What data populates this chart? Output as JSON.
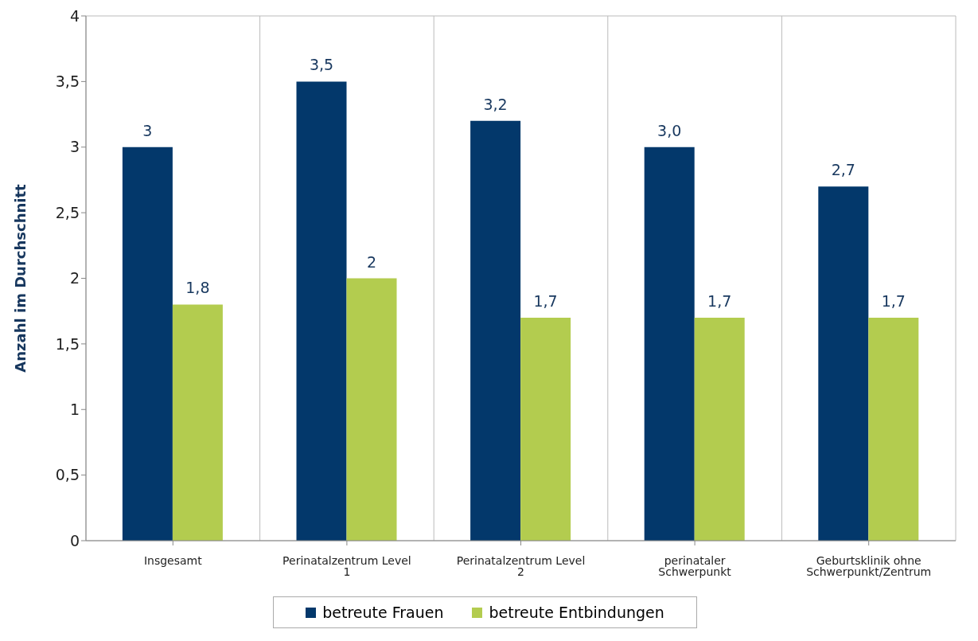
{
  "chart_data": {
    "type": "bar",
    "ylabel": "Anzahl im Durchschnitt",
    "categories": [
      "Insgesamt",
      "Perinatalzentrum Level 1",
      "Perinatalzentrum Level 2",
      "perinataler Schwerpunkt",
      "Geburtsklinik ohne Schwerpunkt/Zentrum"
    ],
    "series": [
      {
        "name": "betreute Frauen",
        "color": "#03386b",
        "values": [
          3,
          3.5,
          3.2,
          3.0,
          2.7
        ],
        "value_labels": [
          "3",
          "3,5",
          "3,2",
          "3,0",
          "2,7"
        ]
      },
      {
        "name": "betreute Entbindungen",
        "color": "#b3cc4f",
        "values": [
          1.8,
          2,
          1.7,
          1.7,
          1.7
        ],
        "value_labels": [
          "1,8",
          "2",
          "1,7",
          "1,7",
          "1,7"
        ]
      }
    ],
    "ylim": [
      0,
      4
    ],
    "yticks": [
      0,
      {
        "value": 0.5,
        "label": "0,5"
      },
      1,
      {
        "value": 1.5,
        "label": "1,5"
      },
      2,
      {
        "value": 2.5,
        "label": "2,5"
      },
      3,
      {
        "value": 3.5,
        "label": "3,5"
      },
      4
    ],
    "grid": true,
    "legend": "bottom"
  }
}
